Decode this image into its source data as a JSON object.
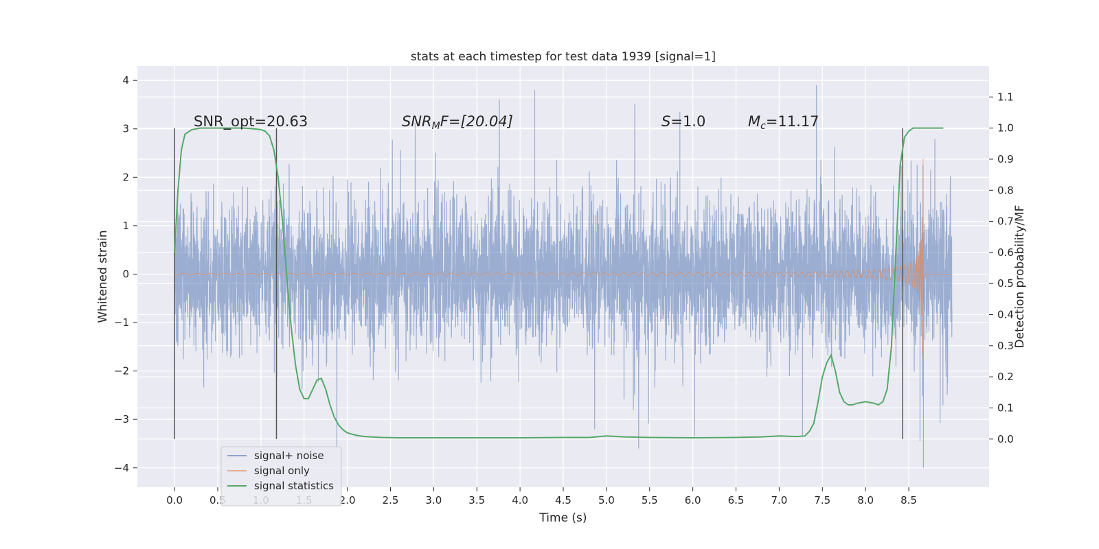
{
  "chart_data": {
    "type": "line",
    "title": "stats at each timestep for test data 1939 [signal=1]",
    "xlabel": "Time (s)",
    "ylabel": "Whitened strain",
    "y2label": "Detection probability/MF",
    "xlim": [
      -0.43,
      9.43
    ],
    "ylim": [
      -4.4,
      4.3
    ],
    "y2lim": [
      -0.155,
      1.2
    ],
    "xticks": [
      "0.0",
      "0.5",
      "1.0",
      "1.5",
      "2.0",
      "2.5",
      "3.0",
      "3.5",
      "4.0",
      "4.5",
      "5.0",
      "5.5",
      "6.0",
      "6.5",
      "7.0",
      "7.5",
      "8.0",
      "8.5"
    ],
    "yticks": [
      "−4",
      "−3",
      "−2",
      "−1",
      "0",
      "1",
      "2",
      "3",
      "4"
    ],
    "y2ticks": [
      "0.0",
      "0.1",
      "0.2",
      "0.3",
      "0.4",
      "0.5",
      "0.6",
      "0.7",
      "0.8",
      "0.9",
      "1.0",
      "1.1"
    ],
    "grid": true,
    "background": "#eaeaf2",
    "legend_position": "lower-left",
    "series": [
      {
        "name": "signal+ noise",
        "color": "#4c72b0",
        "axis": "left",
        "description_values": {
          "t_start": 0.0,
          "t_end": 9.0,
          "typical_amplitude": 1.0,
          "peaks": [
            [
              4.17,
              3.8
            ],
            [
              7.43,
              3.9
            ],
            [
              8.67,
              -4.0
            ],
            [
              8.63,
              -3.45
            ],
            [
              5.85,
              3.35
            ]
          ]
        }
      },
      {
        "name": "signal only",
        "color": "#dd8452",
        "axis": "left",
        "chirp": {
          "t_start": 0.0,
          "t_merger": 8.67,
          "amplitude_at_merger": 2.4,
          "amplitude_at_8s": 0.4,
          "amplitude_at_6s": 0.18
        }
      },
      {
        "name": "signal statistics",
        "color": "#55a868",
        "axis": "right",
        "x": [
          0.0,
          0.04,
          0.08,
          0.12,
          0.2,
          0.3,
          0.4,
          0.5,
          0.6,
          0.7,
          0.8,
          0.9,
          1.0,
          1.05,
          1.1,
          1.15,
          1.2,
          1.25,
          1.3,
          1.35,
          1.4,
          1.45,
          1.5,
          1.55,
          1.6,
          1.65,
          1.7,
          1.75,
          1.8,
          1.85,
          1.9,
          1.95,
          2.0,
          2.1,
          2.2,
          2.4,
          2.6,
          3.0,
          3.5,
          4.0,
          4.5,
          4.8,
          5.0,
          5.2,
          5.5,
          6.0,
          6.5,
          6.8,
          7.0,
          7.2,
          7.3,
          7.35,
          7.4,
          7.45,
          7.5,
          7.55,
          7.6,
          7.65,
          7.7,
          7.75,
          7.8,
          7.85,
          7.9,
          8.0,
          8.1,
          8.15,
          8.2,
          8.25,
          8.3,
          8.35,
          8.4,
          8.45,
          8.5,
          8.55,
          8.6,
          8.7,
          8.8,
          8.9
        ],
        "y": [
          0.6,
          0.8,
          0.93,
          0.98,
          0.995,
          1.0,
          1.0,
          1.0,
          1.0,
          1.0,
          1.0,
          0.998,
          0.995,
          0.99,
          0.975,
          0.93,
          0.84,
          0.7,
          0.52,
          0.36,
          0.24,
          0.16,
          0.13,
          0.13,
          0.16,
          0.19,
          0.195,
          0.16,
          0.11,
          0.07,
          0.045,
          0.03,
          0.02,
          0.012,
          0.008,
          0.005,
          0.004,
          0.004,
          0.004,
          0.004,
          0.005,
          0.005,
          0.01,
          0.007,
          0.005,
          0.004,
          0.005,
          0.007,
          0.01,
          0.008,
          0.01,
          0.025,
          0.05,
          0.12,
          0.2,
          0.245,
          0.27,
          0.22,
          0.15,
          0.12,
          0.11,
          0.11,
          0.115,
          0.12,
          0.115,
          0.11,
          0.12,
          0.16,
          0.3,
          0.6,
          0.88,
          0.97,
          0.99,
          1.0,
          1.0,
          1.0,
          1.0,
          1.0
        ]
      }
    ],
    "vertical_lines_x": [
      0.0,
      1.18,
      8.43
    ],
    "annotations": [
      {
        "text": "SNR_opt=20.63",
        "x": 0.2,
        "y2": 1.0
      },
      {
        "text": "SNR_MF=[20.04]",
        "x": 2.6,
        "y2": 1.0
      },
      {
        "text": "S=1.0",
        "x": 5.6,
        "y2": 1.0
      },
      {
        "text": "M_c=11.17",
        "x": 6.6,
        "y2": 1.0
      }
    ]
  },
  "annotation_parts": {
    "snr_opt": "SNR_opt=20.63",
    "snr_mf_base": "SNR",
    "snr_mf_sub": "M",
    "snr_mf_rest": "F=[20.04]",
    "s_var": "S",
    "s_rest": "=1.0",
    "mc_var": "M",
    "mc_sub": "c",
    "mc_rest": "=11.17"
  }
}
